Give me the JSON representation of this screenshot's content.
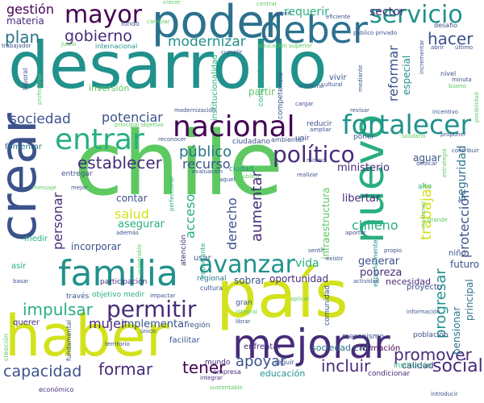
{
  "words": {
    "chile": "chile",
    "pais": "país",
    "desarrollo": "desarrollo",
    "haber": "haber",
    "crear": "crear",
    "nuevo": "nuevo",
    "poder": "poder",
    "deber": "deber",
    "mejorar": "mejorar",
    "familia": "familia",
    "nacional": "nacional",
    "entrar": "entrar",
    "fortalecer": "fortalecer",
    "servicio": "servicio",
    "mayor": "mayor",
    "avanzar": "avanzar",
    "politico": "político",
    "permitir": "permitir",
    "establecer": "establecer",
    "sociedad": "sociedad",
    "potenciar": "potenciar",
    "gobierno": "gobierno",
    "modernizar": "modernizar",
    "plan": "plan",
    "hacer": "hacer",
    "sector": "sector",
    "requerir": "requerir",
    "gestion": "gestión",
    "materia": "materia",
    "reformar": "reformar",
    "publico": "público",
    "recurso": "recurso",
    "ministerio": "ministerio",
    "trabajar": "trabajar",
    "aumentar": "aumentar",
    "derecho": "derecho",
    "acceso": "acceso",
    "salud": "salud",
    "personar": "personar",
    "impulsar": "impulsar",
    "mujer": "mujer",
    "capacidad": "capacidad",
    "formar": "formar",
    "tener": "tener",
    "apoyar": "apoyar",
    "incluir": "incluir",
    "promover": "promover",
    "social": "social",
    "progresar": "progresar",
    "chileno": "chileno",
    "vida": "vida",
    "libertar": "libertar",
    "proteccion": "protección",
    "seguridad": "seguridad",
    "infraestructura": "infraestructura",
    "generar": "generar",
    "pobreza": "pobreza",
    "futuro": "futuro",
    "calidad": "calidad",
    "implementar": "implementar",
    "asegurar": "asegurar",
    "oportunidad": "oportunidad",
    "sobrar": "sobrar",
    "contar": "contar",
    "incorporar": "incorporar",
    "especial": "especial",
    "pensionar": "pensionar",
    "principal": "principal",
    "aguar": "aguar",
    "necesidad": "necesidad",
    "sociedad_civil": "sociedad civil",
    "educacion": "educación",
    "fomentar": "fomentar",
    "participacion": "participación",
    "mundo": "mundo",
    "facilitar": "facilitar",
    "enfrentar": "enfrentar",
    "formacion": "formación",
    "poblacion": "población",
    "institucion": "institución",
    "proyecto": "proyecto",
    "entregar": "entregar",
    "ciudadano": "ciudadano",
    "inversion": "inversión",
    "partir": "partir",
    "vivir": "vivir",
    "competencia": "competencia",
    "reducir": "reducir",
    "unir": "unir",
    "poner": "poner",
    "nino": "niño",
    "medir": "medir",
    "asir": "asir",
    "querer": "querer",
    "traves": "través",
    "atencion": "atención",
    "regional": "regional",
    "usar": "usar",
    "importante": "importante",
    "gran": "gran",
    "ciudad": "ciudad",
    "alto": "alto",
    "comunidad": "comunidad",
    "mecanismo": "mecanismo",
    "region": "región",
    "cultura": "cultura",
    "ambiental": "ambiental",
    "condicionar": "condicionar",
    "economico": "económico",
    "integrar": "integrar",
    "seguir": "seguir",
    "sustentable": "sustentable",
    "empresa": "empresa",
    "juicio": "juicio",
    "cambiar": "cambiar",
    "nivel": "nivel",
    "ultimo": "último",
    "publico_privado": "público privado",
    "evaluacion": "evaluación",
    "fondo": "fondo",
    "joven": "joven",
    "eficiente": "eficiente",
    "centrar": "centrar",
    "crecer": "crecer",
    "trabajador": "trabajador",
    "internacional": "internacional",
    "educacion_superior": "educación superior",
    "laboral": "laboral",
    "profesional": "profesional",
    "institucionalidad": "institucionalidad",
    "compromiso": "compromiso",
    "modernizacion": "modernización",
    "objetivo_medir": "objetivo medir",
    "actividad": "actividad",
    "informacion": "información",
    "especialmente": "especialmente",
    "cumplir": "cumplir",
    "moderno": "moderno",
    "cultural": "cultural",
    "mediante": "mediante",
    "desafio": "desafío",
    "abrir": "abrir",
    "incrementar": "incrementar",
    "cargar": "cargar",
    "revisar": "revisar",
    "incentivo": "incentivo",
    "ampliar": "ampliar",
    "proponer": "proponer",
    "solidario": "solidario",
    "reconocer": "reconocer",
    "aquel": "aquel",
    "realizar": "realizar",
    "mejor": "mejor",
    "aportar": "aportar",
    "existir": "existir",
    "sentir": "sentir",
    "propio": "propio",
    "impactar": "impactar",
    "integral": "integral",
    "librar": "librar",
    "unico": "único",
    "grande": "grande",
    "ademas": "además",
    "mismo": "mismo",
    "introducir": "introducir",
    "basar": "basar",
    "creacion": "creación",
    "fundamental": "fundamental",
    "mensaje": "mensaje",
    "perfeccionar": "perfeccionar",
    "principal_objetivo": "principal objetivo",
    "bueno": "bueno",
    "posibilidad": "posibilidad",
    "vulnerable": "vulnerable",
    "minuta": "minuta",
    "estrategia": "estrategia",
    "dedicar": "dedicar",
    "mantener": "mantener",
    "contribuir": "contribuir",
    "territorio": "territorio",
    "aplicar": "aplicar",
    "publica": "pública"
  }
}
